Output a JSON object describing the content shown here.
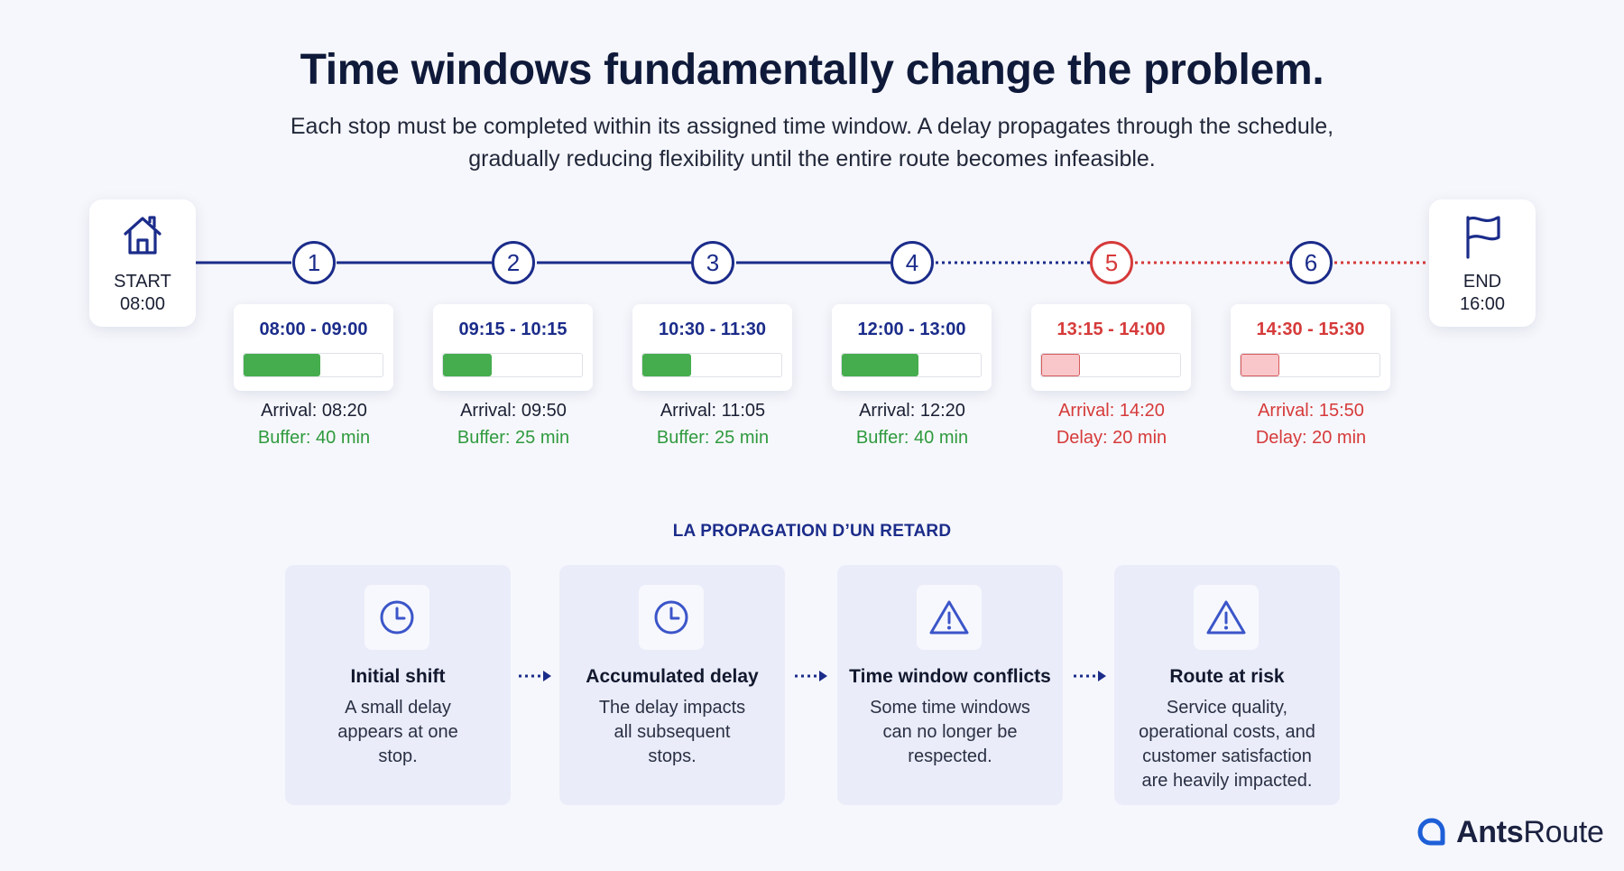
{
  "header": {
    "title": "Time windows fundamentally change the problem.",
    "subtitle_line1": "Each stop must be completed within its assigned time window. A delay propagates through the schedule,",
    "subtitle_line2": "gradually reducing flexibility until the entire route becomes infeasible."
  },
  "timeline": {
    "start": {
      "label": "START",
      "time": "08:00",
      "icon": "home-icon"
    },
    "end": {
      "label": "END",
      "time": "16:00",
      "icon": "flag-icon"
    },
    "stops": [
      {
        "number": "1",
        "window": "08:00 - 09:00",
        "arrival": "Arrival: 08:20",
        "status": "Buffer: 40 min",
        "late": false,
        "fill_fraction": 0.55
      },
      {
        "number": "2",
        "window": "09:15 - 10:15",
        "arrival": "Arrival: 09:50",
        "status": "Buffer: 25 min",
        "late": false,
        "fill_fraction": 0.35
      },
      {
        "number": "3",
        "window": "10:30 - 11:30",
        "arrival": "Arrival: 11:05",
        "status": "Buffer: 25 min",
        "late": false,
        "fill_fraction": 0.35
      },
      {
        "number": "4",
        "window": "12:00 - 13:00",
        "arrival": "Arrival: 12:20",
        "status": "Buffer: 40 min",
        "late": false,
        "fill_fraction": 0.55
      },
      {
        "number": "5",
        "window": "13:15 - 14:00",
        "arrival": "Arrival: 14:20",
        "status": "Delay: 20 min",
        "late": true,
        "fill_fraction": 0.28
      },
      {
        "number": "6",
        "window": "14:30 - 15:30",
        "arrival": "Arrival: 15:50",
        "status": "Delay: 20 min",
        "late": true,
        "fill_fraction": 0.28
      }
    ]
  },
  "propagation": {
    "section_title": "LA PROPAGATION D’UN RETARD",
    "steps": [
      {
        "title": "Initial shift",
        "desc_lines": [
          "A small delay",
          "appears at one",
          "stop."
        ],
        "icon": "clock-icon"
      },
      {
        "title": "Accumulated delay",
        "desc_lines": [
          "The delay impacts",
          "all subsequent",
          "stops."
        ],
        "icon": "clock-icon"
      },
      {
        "title": "Time window conflicts",
        "desc_lines": [
          "Some time windows",
          "can no longer be",
          "respected."
        ],
        "icon": "warning-icon"
      },
      {
        "title": "Route at risk",
        "desc_lines": [
          "Service quality,",
          "operational costs, and",
          "customer satisfaction",
          "are heavily impacted."
        ],
        "icon": "warning-icon"
      }
    ]
  },
  "brand": {
    "name_bold": "Ants",
    "name_light": "Route"
  },
  "colors": {
    "navy": "#1b2c8a",
    "late_red": "#d63a3a",
    "buffer_green": "#2f9a3e",
    "bar_green": "#45ad4e",
    "late_fill": "#f9c6c9"
  }
}
